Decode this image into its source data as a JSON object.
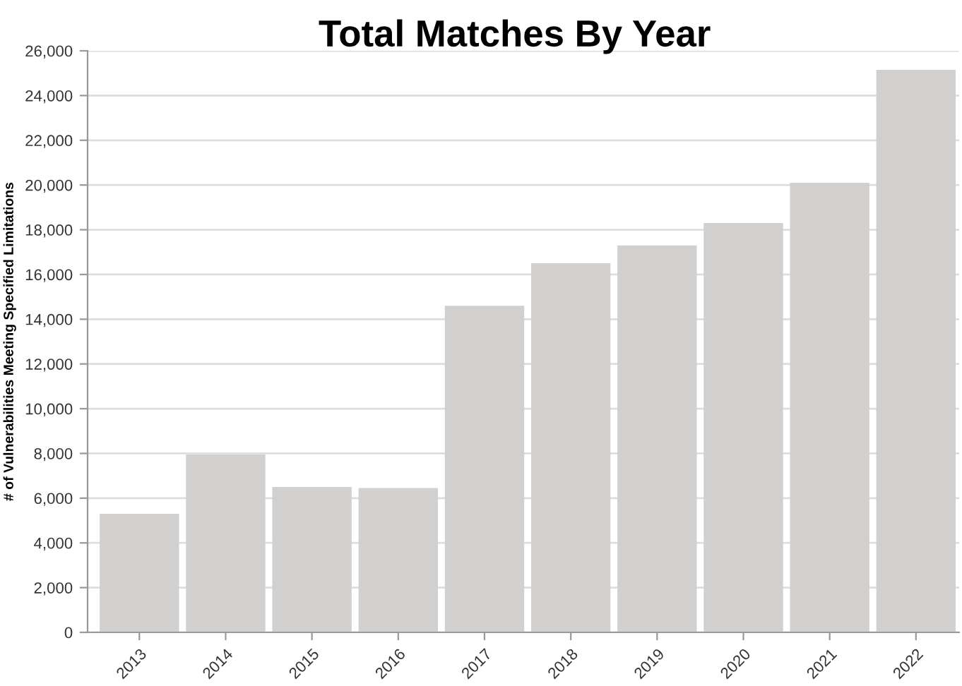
{
  "chart_data": {
    "type": "bar",
    "title": "Total Matches By Year",
    "ylabel": "# of Vulnerabilities Meeting Specified Limitations",
    "categories": [
      "2013",
      "2014",
      "2015",
      "2016",
      "2017",
      "2018",
      "2019",
      "2020",
      "2021",
      "2022"
    ],
    "values": [
      5300,
      7950,
      6500,
      6450,
      14600,
      16500,
      17300,
      18300,
      20100,
      25150
    ],
    "color": "#d1d0ce",
    "ylim": [
      0,
      26000
    ],
    "yticks": [
      {
        "value": 0,
        "label": "0"
      },
      {
        "value": 2000,
        "label": "2,000"
      },
      {
        "value": 4000,
        "label": "4,000"
      },
      {
        "value": 6000,
        "label": "6,000"
      },
      {
        "value": 8000,
        "label": "8,000"
      },
      {
        "value": 10000,
        "label": "10,000"
      },
      {
        "value": 12000,
        "label": "12,000"
      },
      {
        "value": 14000,
        "label": "14,000"
      },
      {
        "value": 16000,
        "label": "16,000"
      },
      {
        "value": 18000,
        "label": "18,000"
      },
      {
        "value": 20000,
        "label": "20,000"
      },
      {
        "value": 22000,
        "label": "22,000"
      },
      {
        "value": 24000,
        "label": "24,000"
      },
      {
        "value": 26000,
        "label": "26,000"
      }
    ],
    "grid": "y"
  }
}
